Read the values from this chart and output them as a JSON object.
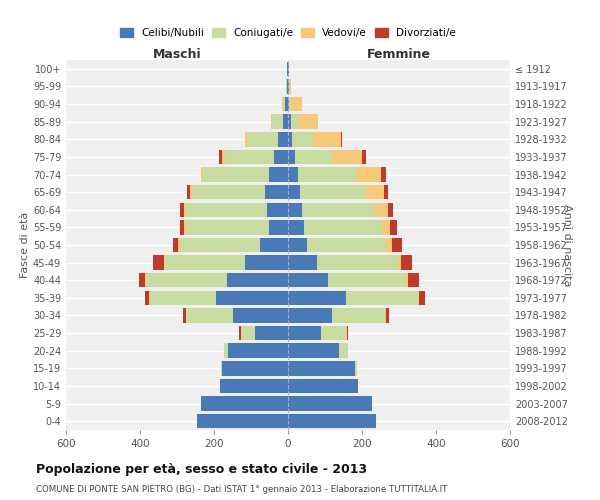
{
  "age_groups": [
    "0-4",
    "5-9",
    "10-14",
    "15-19",
    "20-24",
    "25-29",
    "30-34",
    "35-39",
    "40-44",
    "45-49",
    "50-54",
    "55-59",
    "60-64",
    "65-69",
    "70-74",
    "75-79",
    "80-84",
    "85-89",
    "90-94",
    "95-99",
    "100+"
  ],
  "birth_years": [
    "2008-2012",
    "2003-2007",
    "1998-2002",
    "1993-1997",
    "1988-1992",
    "1983-1987",
    "1978-1982",
    "1973-1977",
    "1968-1972",
    "1963-1967",
    "1958-1962",
    "1953-1957",
    "1948-1952",
    "1943-1947",
    "1938-1942",
    "1933-1937",
    "1928-1932",
    "1923-1927",
    "1918-1922",
    "1913-1917",
    "≤ 1912"
  ],
  "maschi": {
    "celibi": [
      245,
      235,
      185,
      178,
      162,
      88,
      150,
      195,
      165,
      115,
      75,
      52,
      58,
      62,
      52,
      38,
      28,
      14,
      7,
      3,
      2
    ],
    "coniugati": [
      0,
      0,
      0,
      2,
      12,
      38,
      125,
      178,
      218,
      218,
      218,
      225,
      218,
      198,
      178,
      132,
      80,
      28,
      7,
      2,
      0
    ],
    "vedovi": [
      0,
      0,
      0,
      0,
      0,
      2,
      2,
      3,
      3,
      3,
      3,
      3,
      5,
      5,
      5,
      8,
      8,
      5,
      2,
      0,
      0
    ],
    "divorziati": [
      0,
      0,
      0,
      0,
      0,
      5,
      8,
      10,
      18,
      30,
      15,
      12,
      10,
      8,
      0,
      8,
      0,
      0,
      0,
      0,
      0
    ]
  },
  "femmine": {
    "nubili": [
      238,
      228,
      188,
      182,
      138,
      90,
      118,
      158,
      108,
      78,
      52,
      42,
      38,
      32,
      28,
      18,
      12,
      8,
      4,
      2,
      2
    ],
    "coniugate": [
      0,
      0,
      2,
      5,
      25,
      68,
      145,
      192,
      208,
      218,
      212,
      212,
      198,
      178,
      158,
      102,
      55,
      18,
      5,
      2,
      0
    ],
    "vedove": [
      0,
      0,
      0,
      0,
      0,
      2,
      3,
      5,
      8,
      10,
      18,
      22,
      35,
      50,
      65,
      80,
      75,
      55,
      30,
      5,
      0
    ],
    "divorziate": [
      0,
      0,
      0,
      0,
      0,
      3,
      8,
      15,
      30,
      30,
      25,
      18,
      12,
      10,
      15,
      10,
      5,
      0,
      0,
      0,
      0
    ]
  },
  "colors": {
    "celibi": "#4a7ab5",
    "coniugati": "#c8dba0",
    "vedovi": "#f5c87a",
    "divorziati": "#c0392b"
  },
  "xlim": 600,
  "title": "Popolazione per età, sesso e stato civile - 2013",
  "subtitle": "COMUNE DI PONTE SAN PIETRO (BG) - Dati ISTAT 1° gennaio 2013 - Elaborazione TUTTITALIA.IT",
  "ylabel_left": "Fasce di età",
  "ylabel_right": "Anni di nascita",
  "xlabel_left": "Maschi",
  "xlabel_right": "Femmine",
  "legend_labels": [
    "Celibi/Nubili",
    "Coniugati/e",
    "Vedovi/e",
    "Divorziati/e"
  ],
  "bg_color": "#ffffff",
  "plot_bg_color": "#efefef"
}
